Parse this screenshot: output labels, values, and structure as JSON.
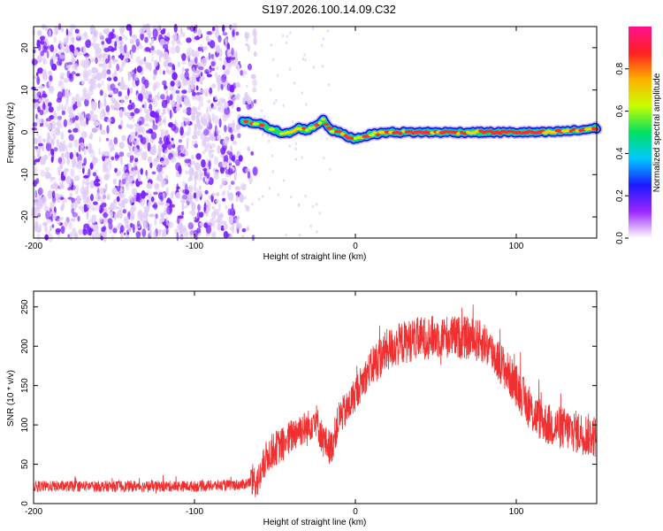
{
  "title": "S197.2026.100.14.09.C32",
  "chart_data": [
    {
      "type": "heatmap",
      "title": "S197.2026.100.14.09.C32",
      "xlabel": "Height of straight line (km)",
      "ylabel": "Frequency (Hz)",
      "xlim": [
        -200,
        150
      ],
      "ylim": [
        -25,
        25
      ],
      "xticks": [
        -200,
        -100,
        0,
        100
      ],
      "yticks": [
        -20,
        -10,
        0,
        10,
        20
      ],
      "description_noise_region": "scattered low-amplitude noise for heights below about -70 km",
      "ridge": {
        "x": [
          -70,
          -60,
          -50,
          -45,
          -40,
          -35,
          -30,
          -25,
          -20,
          -15,
          -10,
          -5,
          0,
          5,
          10,
          20,
          40,
          60,
          80,
          100,
          120,
          140,
          150
        ],
        "y": [
          2.5,
          2.0,
          0.5,
          -0.5,
          0.0,
          1.0,
          0.5,
          1.5,
          3.0,
          0.5,
          0.0,
          -1.0,
          -1.5,
          -1.0,
          -0.5,
          0.0,
          0.0,
          0.0,
          0.0,
          0.0,
          0.0,
          0.5,
          1.0
        ]
      },
      "colorbar": {
        "label": "Normalized spectral amplitude",
        "range": [
          0.0,
          1.0
        ],
        "ticks": [
          "0.0",
          "0.2",
          "0.4",
          "0.6",
          "0.8"
        ],
        "tick_values": [
          0.0,
          0.2,
          0.4,
          0.6,
          0.8
        ],
        "colors": [
          "#ffffff",
          "#9c27ff",
          "#1a1aff",
          "#00c8ff",
          "#00e060",
          "#c8ff00",
          "#ffb000",
          "#ff2020",
          "#ff1090"
        ]
      },
      "colors": {
        "noise_light": "#e0ccf7",
        "noise_dark": "#7a1fff",
        "axis": "#000000"
      }
    },
    {
      "type": "line",
      "xlabel": "Height of straight line (km)",
      "ylabel": "SNR (10 * v/v)",
      "xlim": [
        -200,
        150
      ],
      "ylim": [
        0,
        270
      ],
      "xticks": [
        -200,
        -100,
        0,
        100
      ],
      "yticks": [
        0,
        50,
        100,
        150,
        200,
        250
      ],
      "color": "#f03030",
      "envelope": {
        "x": [
          -200,
          -150,
          -100,
          -70,
          -60,
          -55,
          -50,
          -45,
          -40,
          -35,
          -30,
          -25,
          -20,
          -15,
          -10,
          -5,
          0,
          10,
          20,
          30,
          40,
          50,
          60,
          70,
          80,
          90,
          100,
          110,
          120,
          130,
          140,
          150
        ],
        "y": [
          22,
          22,
          22,
          24,
          30,
          60,
          70,
          75,
          85,
          95,
          95,
          110,
          80,
          70,
          110,
          120,
          140,
          175,
          195,
          205,
          210,
          212,
          212,
          210,
          205,
          180,
          150,
          115,
          100,
          95,
          90,
          85
        ]
      }
    }
  ]
}
